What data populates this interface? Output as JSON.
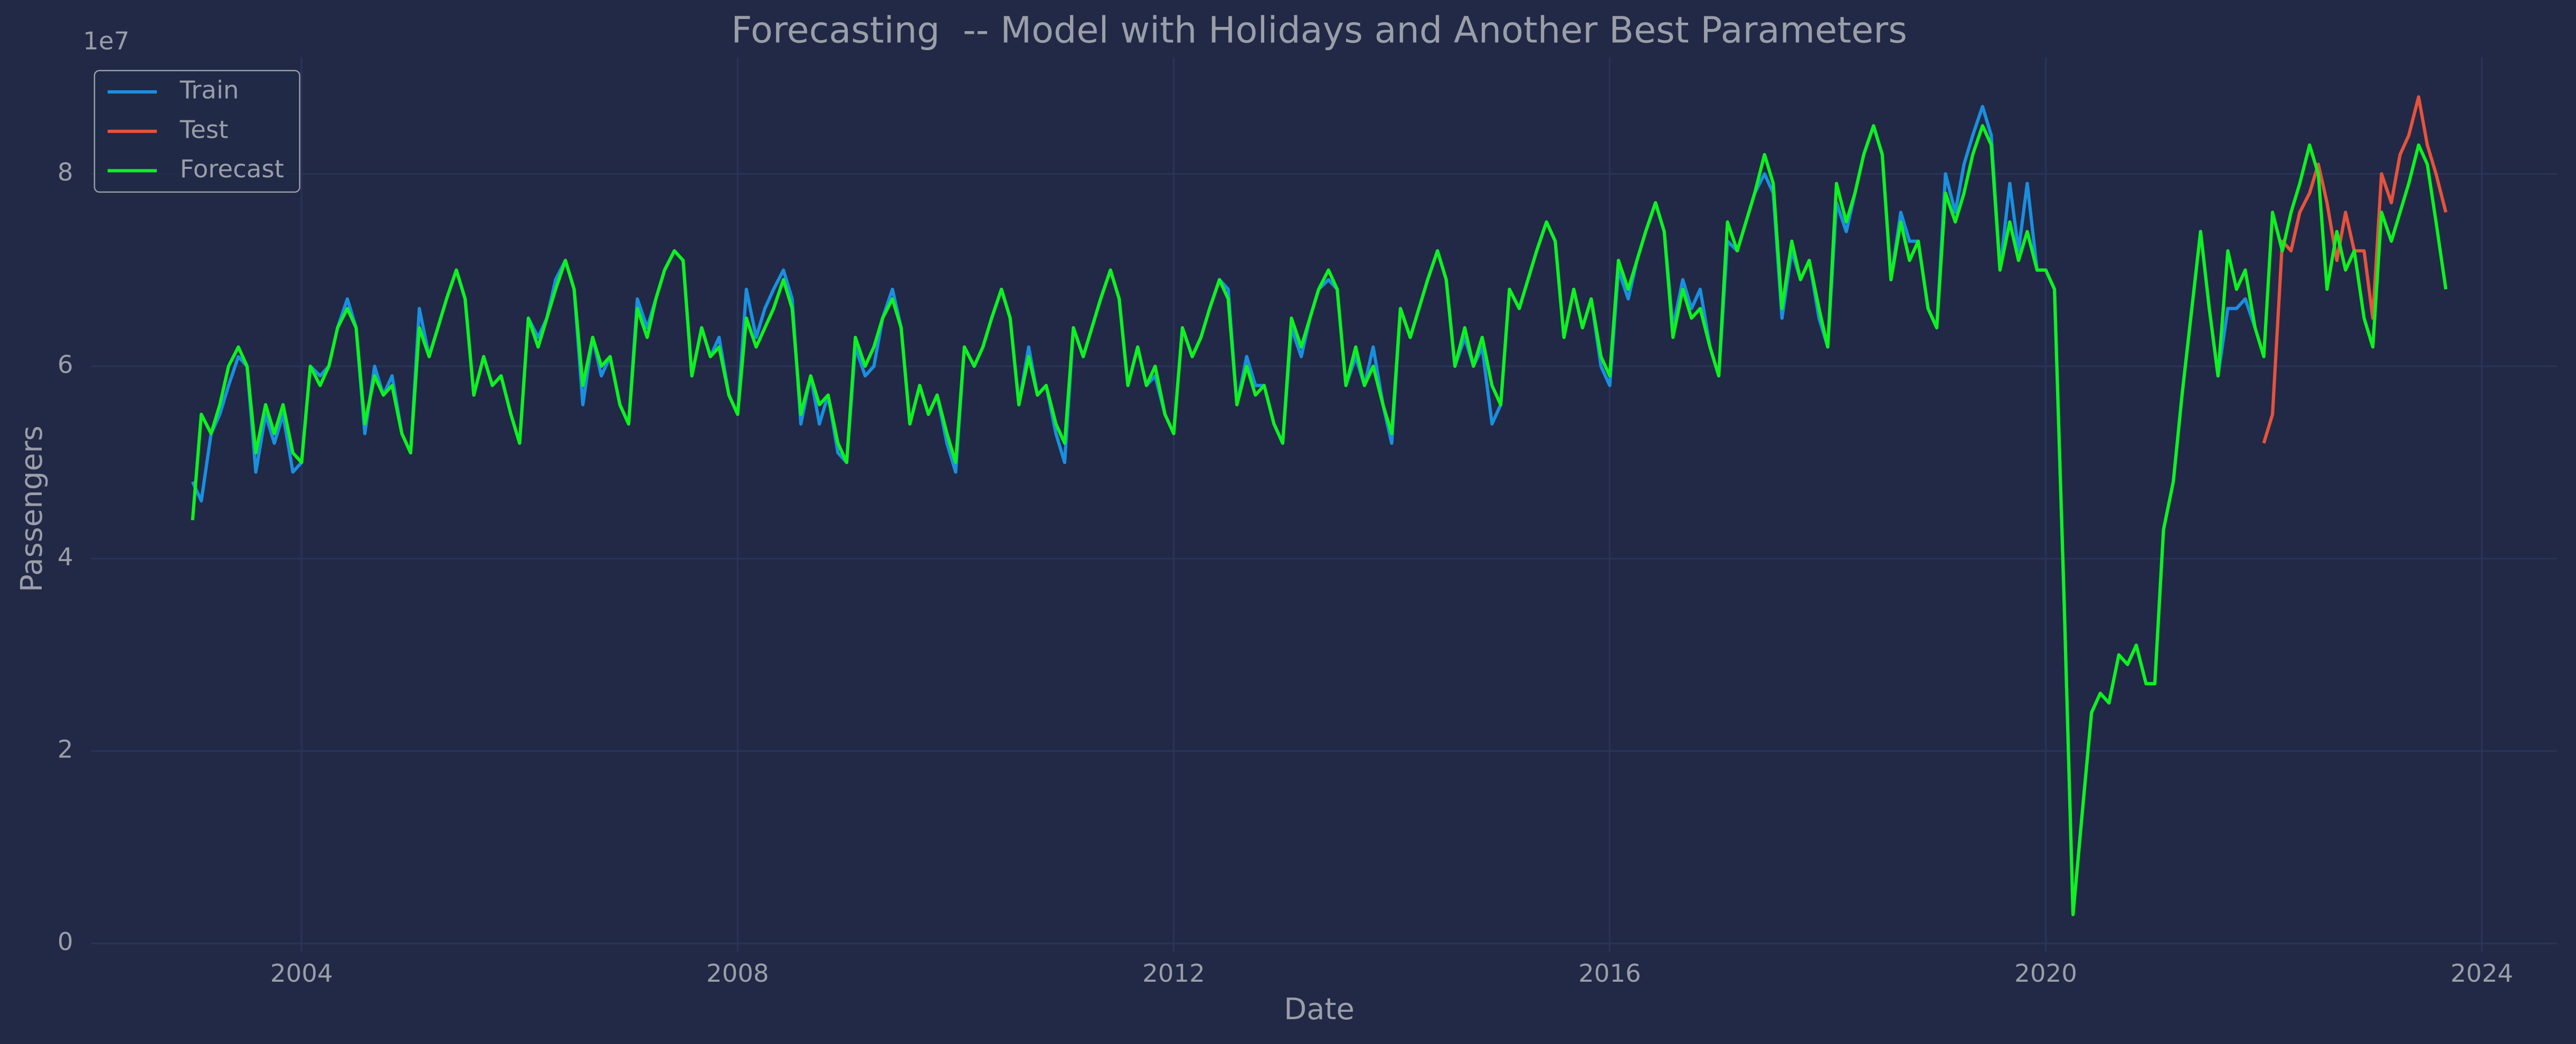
{
  "chart_data": {
    "type": "line",
    "title": "Forecasting  -- Model with Holidays and Another Best Parameters",
    "x_label": "Date",
    "y_label": "Passengers",
    "y_offset_label": "1e7",
    "xlim": [
      2002.07,
      2024.69
    ],
    "xticks": [
      2004,
      2008,
      2012,
      2016,
      2020,
      2024
    ],
    "ylim": [
      -0.09,
      9.21
    ],
    "yticks": [
      0,
      2,
      4,
      6,
      8
    ],
    "grid": true,
    "legend": "upper left",
    "x": [
      2003,
      2003.08,
      2003.17,
      2003.25,
      2003.33,
      2003.42,
      2003.5,
      2003.58,
      2003.67,
      2003.75,
      2003.83,
      2003.92,
      2004,
      2004.08,
      2004.17,
      2004.25,
      2004.33,
      2004.42,
      2004.5,
      2004.58,
      2004.67,
      2004.75,
      2004.83,
      2004.92,
      2005,
      2005.08,
      2005.17,
      2005.25,
      2005.33,
      2005.42,
      2005.5,
      2005.58,
      2005.67,
      2005.75,
      2005.83,
      2005.92,
      2006,
      2006.08,
      2006.17,
      2006.25,
      2006.33,
      2006.42,
      2006.5,
      2006.58,
      2006.67,
      2006.75,
      2006.83,
      2006.92,
      2007,
      2007.08,
      2007.17,
      2007.25,
      2007.33,
      2007.42,
      2007.5,
      2007.58,
      2007.67,
      2007.75,
      2007.83,
      2007.92,
      2008,
      2008.08,
      2008.17,
      2008.25,
      2008.33,
      2008.42,
      2008.5,
      2008.58,
      2008.67,
      2008.75,
      2008.83,
      2008.92,
      2009,
      2009.08,
      2009.17,
      2009.25,
      2009.33,
      2009.42,
      2009.5,
      2009.58,
      2009.67,
      2009.75,
      2009.83,
      2009.92,
      2010,
      2010.08,
      2010.17,
      2010.25,
      2010.33,
      2010.42,
      2010.5,
      2010.58,
      2010.67,
      2010.75,
      2010.83,
      2010.92,
      2011,
      2011.08,
      2011.17,
      2011.25,
      2011.33,
      2011.42,
      2011.5,
      2011.58,
      2011.67,
      2011.75,
      2011.83,
      2011.92,
      2012,
      2012.08,
      2012.17,
      2012.25,
      2012.33,
      2012.42,
      2012.5,
      2012.58,
      2012.67,
      2012.75,
      2012.83,
      2012.92,
      2013,
      2013.08,
      2013.17,
      2013.25,
      2013.33,
      2013.42,
      2013.5,
      2013.58,
      2013.67,
      2013.75,
      2013.83,
      2013.92,
      2014,
      2014.08,
      2014.17,
      2014.25,
      2014.33,
      2014.42,
      2014.5,
      2014.58,
      2014.67,
      2014.75,
      2014.83,
      2014.92,
      2015,
      2015.08,
      2015.17,
      2015.25,
      2015.33,
      2015.42,
      2015.5,
      2015.58,
      2015.67,
      2015.75,
      2015.83,
      2015.92,
      2016,
      2016.08,
      2016.17,
      2016.25,
      2016.33,
      2016.42,
      2016.5,
      2016.58,
      2016.67,
      2016.75,
      2016.83,
      2016.92,
      2017,
      2017.08,
      2017.17,
      2017.25,
      2017.33,
      2017.42,
      2017.5,
      2017.58,
      2017.67,
      2017.75,
      2017.83,
      2017.92,
      2018,
      2018.08,
      2018.17,
      2018.25,
      2018.33,
      2018.42,
      2018.5,
      2018.58,
      2018.67,
      2018.75,
      2018.83,
      2018.92,
      2019,
      2019.08,
      2019.17,
      2019.25,
      2019.33,
      2019.42,
      2019.5,
      2019.58,
      2019.67,
      2019.75,
      2019.83,
      2019.92,
      2020,
      2020.08,
      2020.17,
      2020.25,
      2020.33,
      2020.42,
      2020.5,
      2020.58,
      2020.67,
      2020.75,
      2020.83,
      2020.92,
      2021,
      2021.08,
      2021.17,
      2021.25,
      2021.33,
      2021.42,
      2021.5,
      2021.58,
      2021.67,
      2021.75,
      2021.83,
      2021.92,
      2022,
      2022.08,
      2022.17,
      2022.25,
      2022.33,
      2022.42,
      2022.5,
      2022.58,
      2022.67,
      2022.75,
      2022.83,
      2022.92,
      2023,
      2023.08,
      2023.17,
      2023.25,
      2023.33,
      2023.42,
      2023.5,
      2023.58,
      2023.67
    ],
    "series": [
      {
        "name": "Train",
        "color": "#1a8fe0",
        "values": [
          4.8,
          4.6,
          5.3,
          5.5,
          5.8,
          6.1,
          6.0,
          4.9,
          5.5,
          5.2,
          5.5,
          4.9,
          5.0,
          6.0,
          5.9,
          6.0,
          6.4,
          6.7,
          6.4,
          5.3,
          6.0,
          5.7,
          5.9,
          5.3,
          5.1,
          6.6,
          6.1,
          6.4,
          6.7,
          7.0,
          6.7,
          5.7,
          6.1,
          5.8,
          5.9,
          5.5,
          5.2,
          6.5,
          6.3,
          6.5,
          6.9,
          7.1,
          6.8,
          5.6,
          6.3,
          5.9,
          6.1,
          5.6,
          5.4,
          6.7,
          6.4,
          6.7,
          7.0,
          7.2,
          7.1,
          5.9,
          6.4,
          6.1,
          6.3,
          5.7,
          5.5,
          6.8,
          6.3,
          6.6,
          6.8,
          7.0,
          6.7,
          5.4,
          5.9,
          5.4,
          5.7,
          5.1,
          5.0,
          6.2,
          5.9,
          6.0,
          6.5,
          6.8,
          6.4,
          5.4,
          5.8,
          5.5,
          5.7,
          5.2,
          4.9,
          6.2,
          6.0,
          6.2,
          6.5,
          6.8,
          6.5,
          5.6,
          6.2,
          5.7,
          5.8,
          5.3,
          5.0,
          6.4,
          6.1,
          6.4,
          6.7,
          7.0,
          6.7,
          5.8,
          6.2,
          5.8,
          5.9,
          5.5,
          5.3,
          6.4,
          6.1,
          6.3,
          6.6,
          6.9,
          6.8,
          5.6,
          6.1,
          5.8,
          5.8,
          5.4,
          5.2,
          6.4,
          6.1,
          6.5,
          6.8,
          6.9,
          6.8,
          5.8,
          6.1,
          5.8,
          6.2,
          5.6,
          5.2,
          6.6,
          6.3,
          6.6,
          6.9,
          7.2,
          6.9,
          6.0,
          6.3,
          6.0,
          6.2,
          5.4,
          5.6,
          6.8,
          6.6,
          6.9,
          7.2,
          7.5,
          7.3,
          6.3,
          6.8,
          6.4,
          6.7,
          6.0,
          5.8,
          7.0,
          6.7,
          7.1,
          7.4,
          7.7,
          7.4,
          6.4,
          6.9,
          6.6,
          6.8,
          6.2,
          5.9,
          7.3,
          7.2,
          7.5,
          7.8,
          8.0,
          7.8,
          6.5,
          7.2,
          6.9,
          7.1,
          6.5,
          6.2,
          7.7,
          7.4,
          7.8,
          8.2,
          8.5,
          8.2,
          6.9,
          7.6,
          7.3,
          7.3,
          6.6,
          6.4,
          8.0,
          7.6,
          8.1,
          8.4,
          8.7,
          8.4,
          7.0,
          7.9,
          7.2,
          7.9,
          7.0,
          7.0,
          6.8,
          3.5,
          0.3,
          1.3,
          2.4,
          2.6,
          2.5,
          3.0,
          2.9,
          3.1,
          2.7,
          2.7,
          4.3,
          4.8,
          5.7,
          6.5,
          7.4,
          6.6,
          5.9,
          6.6,
          6.6,
          6.7,
          6.4,
          null,
          null,
          null,
          null,
          null,
          null,
          null,
          null,
          null,
          null,
          null,
          null,
          null,
          null,
          null,
          null,
          null,
          null,
          null,
          null,
          null
        ]
      },
      {
        "name": "Test",
        "color": "#e5533c",
        "values": [
          null,
          null,
          null,
          null,
          null,
          null,
          null,
          null,
          null,
          null,
          null,
          null,
          null,
          null,
          null,
          null,
          null,
          null,
          null,
          null,
          null,
          null,
          null,
          null,
          null,
          null,
          null,
          null,
          null,
          null,
          null,
          null,
          null,
          null,
          null,
          null,
          null,
          null,
          null,
          null,
          null,
          null,
          null,
          null,
          null,
          null,
          null,
          null,
          null,
          null,
          null,
          null,
          null,
          null,
          null,
          null,
          null,
          null,
          null,
          null,
          null,
          null,
          null,
          null,
          null,
          null,
          null,
          null,
          null,
          null,
          null,
          null,
          null,
          null,
          null,
          null,
          null,
          null,
          null,
          null,
          null,
          null,
          null,
          null,
          null,
          null,
          null,
          null,
          null,
          null,
          null,
          null,
          null,
          null,
          null,
          null,
          null,
          null,
          null,
          null,
          null,
          null,
          null,
          null,
          null,
          null,
          null,
          null,
          null,
          null,
          null,
          null,
          null,
          null,
          null,
          null,
          null,
          null,
          null,
          null,
          null,
          null,
          null,
          null,
          null,
          null,
          null,
          null,
          null,
          null,
          null,
          null,
          null,
          null,
          null,
          null,
          null,
          null,
          null,
          null,
          null,
          null,
          null,
          null,
          null,
          null,
          null,
          null,
          null,
          null,
          null,
          null,
          null,
          null,
          null,
          null,
          null,
          null,
          null,
          null,
          null,
          null,
          null,
          null,
          null,
          null,
          null,
          null,
          null,
          null,
          null,
          null,
          null,
          null,
          null,
          null,
          null,
          null,
          null,
          null,
          null,
          null,
          null,
          null,
          null,
          null,
          null,
          null,
          null,
          null,
          null,
          null,
          null,
          null,
          null,
          null,
          null,
          null,
          null,
          null,
          null,
          null,
          null,
          null,
          null,
          null,
          null,
          null,
          null,
          null,
          null,
          null,
          null,
          null,
          null,
          null,
          null,
          null,
          null,
          null,
          null,
          null,
          null,
          null,
          null,
          null,
          null,
          null,
          5.2,
          5.5,
          7.3,
          7.2,
          7.6,
          7.8,
          8.1,
          7.7,
          7.1,
          7.6,
          7.2,
          7.2,
          6.5,
          8.0,
          7.7,
          8.2,
          8.4,
          8.8,
          8.3,
          8.0,
          7.6
        ]
      },
      {
        "name": "Forecast",
        "color": "#0cf31f",
        "values": [
          4.4,
          5.5,
          5.3,
          5.6,
          6.0,
          6.2,
          6.0,
          5.1,
          5.6,
          5.3,
          5.6,
          5.1,
          5.0,
          6.0,
          5.8,
          6.0,
          6.4,
          6.6,
          6.4,
          5.4,
          5.9,
          5.7,
          5.8,
          5.3,
          5.1,
          6.4,
          6.1,
          6.4,
          6.7,
          7.0,
          6.7,
          5.7,
          6.1,
          5.8,
          5.9,
          5.5,
          5.2,
          6.5,
          6.2,
          6.5,
          6.8,
          7.1,
          6.8,
          5.8,
          6.3,
          6.0,
          6.1,
          5.6,
          5.4,
          6.6,
          6.3,
          6.7,
          7.0,
          7.2,
          7.1,
          5.9,
          6.4,
          6.1,
          6.2,
          5.7,
          5.5,
          6.5,
          6.2,
          6.4,
          6.6,
          6.9,
          6.6,
          5.5,
          5.9,
          5.6,
          5.7,
          5.2,
          5.0,
          6.3,
          6.0,
          6.2,
          6.5,
          6.7,
          6.4,
          5.4,
          5.8,
          5.5,
          5.7,
          5.3,
          5.0,
          6.2,
          6.0,
          6.2,
          6.5,
          6.8,
          6.5,
          5.6,
          6.1,
          5.7,
          5.8,
          5.4,
          5.2,
          6.4,
          6.1,
          6.4,
          6.7,
          7.0,
          6.7,
          5.8,
          6.2,
          5.8,
          6.0,
          5.5,
          5.3,
          6.4,
          6.1,
          6.3,
          6.6,
          6.9,
          6.7,
          5.6,
          6.0,
          5.7,
          5.8,
          5.4,
          5.2,
          6.5,
          6.2,
          6.5,
          6.8,
          7.0,
          6.8,
          5.8,
          6.2,
          5.8,
          6.0,
          5.6,
          5.3,
          6.6,
          6.3,
          6.6,
          6.9,
          7.2,
          6.9,
          6.0,
          6.4,
          6.0,
          6.3,
          5.8,
          5.6,
          6.8,
          6.6,
          6.9,
          7.2,
          7.5,
          7.3,
          6.3,
          6.8,
          6.4,
          6.7,
          6.1,
          5.9,
          7.1,
          6.8,
          7.1,
          7.4,
          7.7,
          7.4,
          6.3,
          6.8,
          6.5,
          6.6,
          6.2,
          5.9,
          7.5,
          7.2,
          7.5,
          7.8,
          8.2,
          7.9,
          6.6,
          7.3,
          6.9,
          7.1,
          6.6,
          6.2,
          7.9,
          7.5,
          7.8,
          8.2,
          8.5,
          8.2,
          6.9,
          7.5,
          7.1,
          7.3,
          6.6,
          6.4,
          7.8,
          7.5,
          7.8,
          8.2,
          8.5,
          8.3,
          7.0,
          7.5,
          7.1,
          7.4,
          7.0,
          7.0,
          6.8,
          3.5,
          0.3,
          1.3,
          2.4,
          2.6,
          2.5,
          3.0,
          2.9,
          3.1,
          2.7,
          2.7,
          4.3,
          4.8,
          5.7,
          6.5,
          7.4,
          6.6,
          5.9,
          7.2,
          6.8,
          7.0,
          6.4,
          6.1,
          7.6,
          7.2,
          7.6,
          7.9,
          8.3,
          8.0,
          6.8,
          7.4,
          7.0,
          7.2,
          6.5,
          6.2,
          7.6,
          7.3,
          7.6,
          7.9,
          8.3,
          8.1,
          7.5,
          6.8
        ]
      }
    ]
  }
}
